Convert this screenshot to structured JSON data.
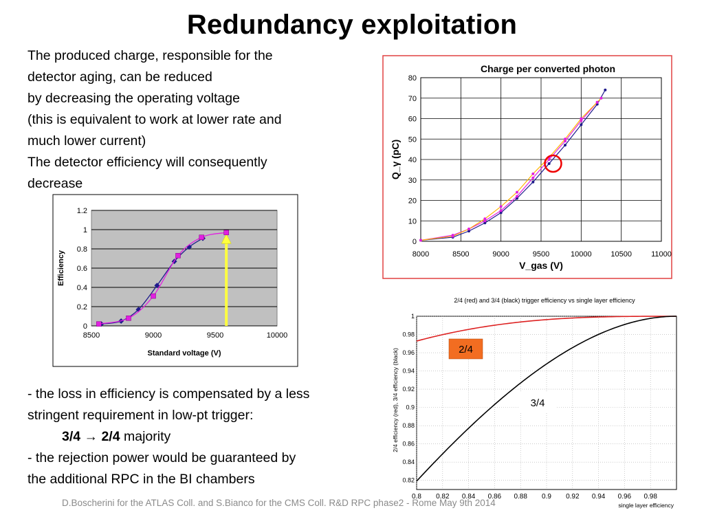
{
  "slide": {
    "title": "Redundancy exploitation",
    "intro_lines": [
      "The produced charge, responsible for the",
      "detector aging, can be reduced",
      "by decreasing the operating voltage",
      "(this is equivalent to work at lower rate and",
      "much lower current)",
      "The detector efficiency will consequently",
      "decrease"
    ],
    "bullet1_line1": "- the loss in efficiency is compensated by a less",
    "bullet1_line2": "stringent requirement in low-pt trigger:",
    "majority_bold": "3/4 → 2/4",
    "majority_rest": " majority",
    "bullet2_line1": "- the rejection power would be guaranteed by",
    "bullet2_line2": "the additional RPC in the BI chambers",
    "footer": "D.Boscherini for the ATLAS Coll. and S.Bianco for the CMS Coll. R&D RPC phase2 - Rome May 9th 2014"
  },
  "colors": {
    "navy": "#1f1a8c",
    "magenta": "#e020e0",
    "yellow_arrow": "#ffff40",
    "plot_bg_gray": "#c0c0c0",
    "red_frame": "#e04040",
    "red_curve": "#dd2020",
    "label_2of4_bg": "#f26d21"
  },
  "chart_data": [
    {
      "type": "line",
      "title": "",
      "xlabel": "Standard voltage (V)",
      "ylabel": "Efficiency",
      "xlim": [
        8500,
        10000
      ],
      "ylim": [
        0,
        1.2
      ],
      "xticks": [
        "8500",
        "9000",
        "9500",
        "10000"
      ],
      "yticks": [
        "0",
        "0.2",
        "0.4",
        "0.6",
        "0.8",
        "1",
        "1.2"
      ],
      "grid": true,
      "series": [
        {
          "x": [
            8580,
            8740,
            8880,
            9030,
            9170,
            9290,
            9400
          ],
          "y": [
            0.02,
            0.05,
            0.17,
            0.42,
            0.67,
            0.82,
            0.91
          ]
        },
        {
          "x": [
            8560,
            8800,
            9000,
            9200,
            9390,
            9590
          ],
          "y": [
            0.02,
            0.08,
            0.31,
            0.73,
            0.92,
            0.97
          ]
        }
      ],
      "annotation": "yellow upward arrow at x=9590 from 0 to efficiency 0.97"
    },
    {
      "type": "line",
      "title": "Charge per converted photon",
      "xlabel": "V_gas (V)",
      "ylabel": "Q_γ (pC)",
      "xlim": [
        8000,
        11000
      ],
      "ylim": [
        0,
        80
      ],
      "xticks": [
        "8000",
        "8500",
        "9000",
        "9500",
        "10000",
        "10500",
        "11000"
      ],
      "yticks": [
        "0",
        "10",
        "20",
        "30",
        "40",
        "50",
        "60",
        "70",
        "80"
      ],
      "grid": true,
      "series": [
        {
          "x": [
            8000,
            8400,
            8600,
            8800,
            9000,
            9200,
            9400,
            9600,
            9800,
            10000,
            10200,
            10300
          ],
          "y": [
            0.5,
            2,
            5,
            9,
            14,
            21,
            29,
            38,
            47,
            57,
            67,
            74
          ]
        },
        {
          "x": [
            8000,
            8400,
            8600,
            8800,
            9000,
            9200,
            9400,
            9600,
            9800,
            10000,
            10200
          ],
          "y": [
            0.5,
            3,
            6,
            10,
            15,
            22,
            31,
            40,
            49,
            59,
            68
          ]
        },
        {
          "x": [
            8000,
            8400,
            8600,
            8800,
            9000,
            9200,
            9400,
            9600,
            9800,
            10000,
            10200,
            10250
          ],
          "y": [
            0.5,
            2.5,
            6,
            11,
            17,
            24,
            33,
            41,
            50,
            60,
            68,
            70
          ]
        }
      ],
      "annotation": "red circle around V_gas ≈ 9650 V, Q ≈ 38 pC"
    },
    {
      "type": "line",
      "title": "2/4 (red) and 3/4 (black) trigger efficiency vs single layer efficiency",
      "xlabel": "single layer efficiency",
      "ylabel": "2/4 efficiency (red), 3/4 efficiency (black)",
      "xlim": [
        0.8,
        1.0
      ],
      "ylim": [
        0.81,
        1.0
      ],
      "xticks": [
        "0.8",
        "0.82",
        "0.84",
        "0.86",
        "0.88",
        "0.9",
        "0.92",
        "0.94",
        "0.96",
        "0.98"
      ],
      "yticks": [
        "0.82",
        "0.84",
        "0.86",
        "0.88",
        "0.9",
        "0.92",
        "0.94",
        "0.96",
        "0.98",
        "1"
      ],
      "grid": true,
      "series": [
        {
          "name": "2/4",
          "color": "#dd2020",
          "formula": "1 - (1-p)^4 - 4p(1-p)^3"
        },
        {
          "name": "3/4",
          "color": "#000000",
          "formula": "p^4 + 4p^3(1-p)"
        }
      ],
      "box_labels": [
        "2/4",
        "3/4"
      ]
    }
  ]
}
